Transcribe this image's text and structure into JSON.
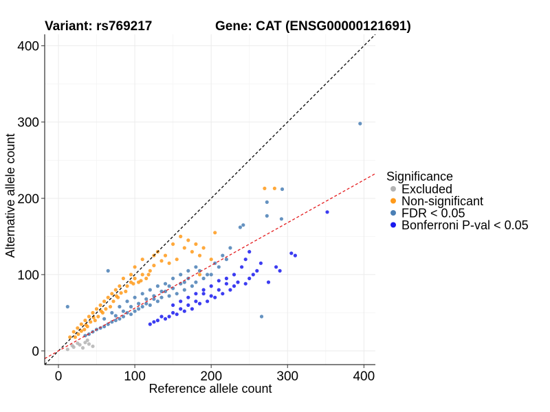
{
  "chart_data": {
    "type": "scatter",
    "title_left": "Variant: rs769217",
    "title_right": "Gene: CAT (ENSG00000121691)",
    "xlabel": "Reference allele count",
    "ylabel": "Alternative allele count",
    "xlim": [
      -18,
      415
    ],
    "ylim": [
      -18,
      415
    ],
    "xticks": [
      0,
      100,
      200,
      300,
      400
    ],
    "yticks": [
      0,
      100,
      200,
      300,
      400
    ],
    "grid": true,
    "legend": {
      "title": "Significance",
      "placement": "right",
      "entries": [
        {
          "label": "Excluded",
          "color": "#b3b3b3"
        },
        {
          "label": "Non-significant",
          "color": "#ff9a1a"
        },
        {
          "label": "FDR < 0.05",
          "color": "#4a7fb5"
        },
        {
          "label": "Bonferroni P-val < 0.05",
          "color": "#1a1aee"
        }
      ]
    },
    "reference_lines": [
      {
        "name": "identity",
        "slope": 1,
        "intercept": 0,
        "color": "#000000",
        "style": "dashed"
      },
      {
        "name": "fit",
        "slope": 0.56,
        "intercept": 0,
        "color": "#e41a1c",
        "style": "dashed"
      }
    ],
    "series": [
      {
        "name": "Excluded",
        "color": "#b3b3b3",
        "points": [
          [
            12,
            2
          ],
          [
            20,
            5
          ],
          [
            28,
            8
          ],
          [
            35,
            11
          ],
          [
            40,
            9
          ],
          [
            45,
            6
          ],
          [
            32,
            4
          ],
          [
            25,
            10
          ],
          [
            38,
            14
          ],
          [
            18,
            7
          ]
        ]
      },
      {
        "name": "Non-significant",
        "color": "#ff9a1a",
        "points": [
          [
            270,
            213
          ],
          [
            283,
            213
          ],
          [
            205,
            155
          ],
          [
            190,
            135
          ],
          [
            150,
            140
          ],
          [
            125,
            125
          ],
          [
            110,
            120
          ],
          [
            100,
            110
          ],
          [
            95,
            100
          ],
          [
            85,
            95
          ],
          [
            80,
            85
          ],
          [
            75,
            80
          ],
          [
            70,
            75
          ],
          [
            60,
            65
          ],
          [
            55,
            60
          ],
          [
            50,
            55
          ],
          [
            45,
            50
          ],
          [
            40,
            45
          ],
          [
            35,
            40
          ],
          [
            30,
            35
          ],
          [
            25,
            30
          ],
          [
            20,
            25
          ],
          [
            15,
            18
          ],
          [
            130,
            130
          ],
          [
            140,
            125
          ],
          [
            160,
            150
          ],
          [
            170,
            145
          ],
          [
            175,
            130
          ],
          [
            180,
            140
          ],
          [
            185,
            125
          ],
          [
            120,
            105
          ],
          [
            115,
            95
          ],
          [
            105,
            90
          ],
          [
            90,
            85
          ],
          [
            88,
            78
          ],
          [
            78,
            70
          ],
          [
            72,
            65
          ],
          [
            68,
            58
          ],
          [
            62,
            55
          ],
          [
            58,
            50
          ],
          [
            52,
            45
          ],
          [
            48,
            40
          ],
          [
            42,
            38
          ],
          [
            38,
            32
          ],
          [
            34,
            28
          ],
          [
            30,
            26
          ],
          [
            26,
            22
          ],
          [
            22,
            18
          ],
          [
            65,
            70
          ],
          [
            95,
            90
          ],
          [
            100,
            95
          ],
          [
            110,
            100
          ],
          [
            145,
            115
          ],
          [
            155,
            120
          ],
          [
            165,
            135
          ],
          [
            135,
            118
          ],
          [
            125,
            112
          ],
          [
            118,
            100
          ],
          [
            108,
            92
          ],
          [
            98,
            88
          ],
          [
            82,
            76
          ],
          [
            76,
            72
          ],
          [
            56,
            52
          ],
          [
            46,
            44
          ],
          [
            36,
            34
          ],
          [
            200,
            120
          ],
          [
            185,
            100
          ]
        ]
      },
      {
        "name": "FDR < 0.05",
        "color": "#4a7fb5",
        "points": [
          [
            395,
            298
          ],
          [
            293,
            212
          ],
          [
            292,
            173
          ],
          [
            273,
            195
          ],
          [
            273,
            177
          ],
          [
            266,
            45
          ],
          [
            242,
            165
          ],
          [
            238,
            162
          ],
          [
            12,
            58
          ],
          [
            65,
            105
          ],
          [
            225,
            135
          ],
          [
            220,
            120
          ],
          [
            215,
            125
          ],
          [
            210,
            110
          ],
          [
            205,
            115
          ],
          [
            195,
            100
          ],
          [
            190,
            95
          ],
          [
            185,
            105
          ],
          [
            180,
            90
          ],
          [
            175,
            85
          ],
          [
            170,
            95
          ],
          [
            165,
            80
          ],
          [
            160,
            88
          ],
          [
            155,
            75
          ],
          [
            150,
            82
          ],
          [
            145,
            72
          ],
          [
            140,
            78
          ],
          [
            135,
            70
          ],
          [
            130,
            65
          ],
          [
            125,
            68
          ],
          [
            120,
            60
          ],
          [
            115,
            62
          ],
          [
            110,
            58
          ],
          [
            105,
            55
          ],
          [
            100,
            52
          ],
          [
            95,
            48
          ],
          [
            90,
            50
          ],
          [
            85,
            45
          ],
          [
            80,
            42
          ],
          [
            75,
            40
          ],
          [
            70,
            38
          ],
          [
            65,
            35
          ],
          [
            60,
            32
          ],
          [
            55,
            30
          ],
          [
            50,
            28
          ],
          [
            45,
            25
          ],
          [
            40,
            22
          ],
          [
            35,
            20
          ],
          [
            150,
            95
          ],
          [
            160,
            100
          ],
          [
            170,
            105
          ],
          [
            180,
            110
          ],
          [
            140,
            88
          ],
          [
            130,
            85
          ],
          [
            120,
            80
          ],
          [
            110,
            75
          ],
          [
            100,
            70
          ],
          [
            90,
            65
          ],
          [
            80,
            58
          ],
          [
            70,
            50
          ],
          [
            60,
            42
          ],
          [
            200,
            100
          ],
          [
            165,
            90
          ],
          [
            145,
            85
          ],
          [
            135,
            78
          ],
          [
            125,
            72
          ],
          [
            115,
            68
          ],
          [
            105,
            62
          ],
          [
            95,
            58
          ],
          [
            85,
            52
          ],
          [
            75,
            46
          ]
        ]
      },
      {
        "name": "Bonferroni P-val < 0.05",
        "color": "#1a1aee",
        "points": [
          [
            352,
            182
          ],
          [
            310,
            125
          ],
          [
            305,
            128
          ],
          [
            290,
            105
          ],
          [
            285,
            110
          ],
          [
            275,
            90
          ],
          [
            265,
            115
          ],
          [
            260,
            105
          ],
          [
            255,
            100
          ],
          [
            250,
            95
          ],
          [
            245,
            88
          ],
          [
            240,
            110
          ],
          [
            235,
            90
          ],
          [
            230,
            85
          ],
          [
            225,
            80
          ],
          [
            220,
            88
          ],
          [
            215,
            75
          ],
          [
            210,
            80
          ],
          [
            205,
            70
          ],
          [
            200,
            72
          ],
          [
            195,
            65
          ],
          [
            190,
            75
          ],
          [
            185,
            62
          ],
          [
            180,
            65
          ],
          [
            175,
            55
          ],
          [
            170,
            60
          ],
          [
            165,
            52
          ],
          [
            160,
            55
          ],
          [
            155,
            48
          ],
          [
            150,
            50
          ],
          [
            145,
            45
          ],
          [
            140,
            42
          ],
          [
            135,
            45
          ],
          [
            130,
            40
          ],
          [
            125,
            38
          ],
          [
            120,
            35
          ],
          [
            250,
            130
          ],
          [
            245,
            120
          ],
          [
            230,
            100
          ],
          [
            220,
            95
          ],
          [
            210,
            92
          ],
          [
            200,
            85
          ],
          [
            190,
            80
          ],
          [
            180,
            75
          ],
          [
            170,
            70
          ],
          [
            160,
            65
          ],
          [
            150,
            60
          ]
        ]
      }
    ]
  }
}
